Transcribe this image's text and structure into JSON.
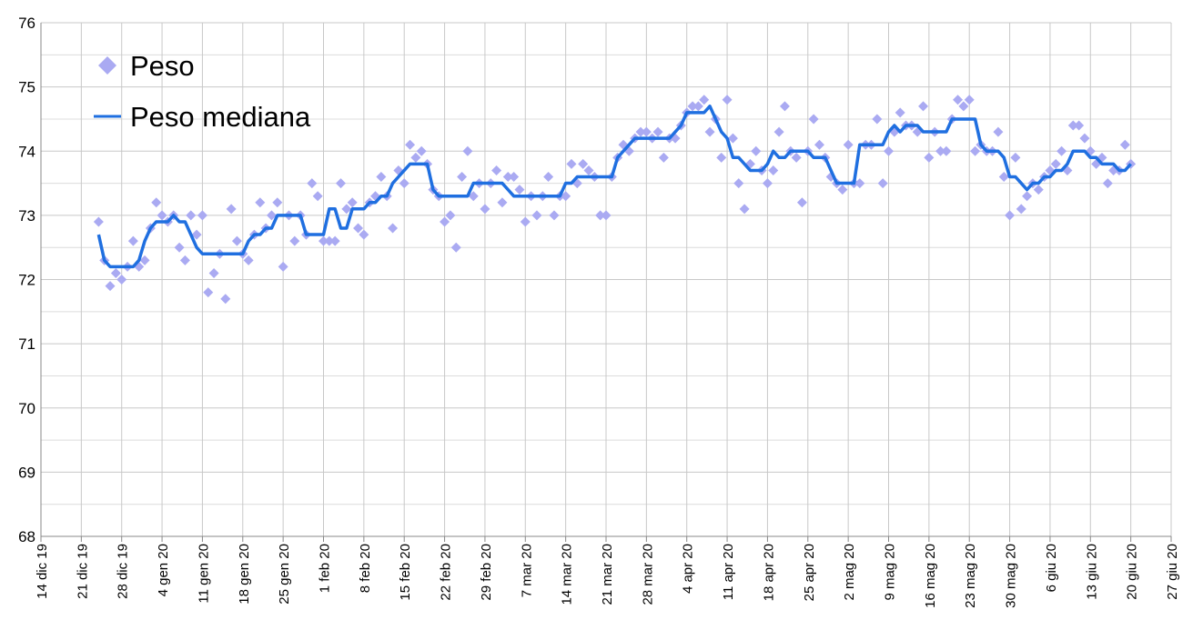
{
  "chart_data": {
    "type": "scatter",
    "x": [
      "2019-12-24",
      "2019-12-25",
      "2019-12-26",
      "2019-12-27",
      "2019-12-28",
      "2019-12-29",
      "2019-12-30",
      "2019-12-31",
      "2020-01-01",
      "2020-01-02",
      "2020-01-03",
      "2020-01-04",
      "2020-01-05",
      "2020-01-06",
      "2020-01-07",
      "2020-01-08",
      "2020-01-09",
      "2020-01-10",
      "2020-01-11",
      "2020-01-12",
      "2020-01-13",
      "2020-01-14",
      "2020-01-15",
      "2020-01-16",
      "2020-01-17",
      "2020-01-18",
      "2020-01-19",
      "2020-01-20",
      "2020-01-21",
      "2020-01-22",
      "2020-01-23",
      "2020-01-24",
      "2020-01-25",
      "2020-01-26",
      "2020-01-27",
      "2020-01-28",
      "2020-01-29",
      "2020-01-30",
      "2020-01-31",
      "2020-02-01",
      "2020-02-02",
      "2020-02-03",
      "2020-02-04",
      "2020-02-05",
      "2020-02-06",
      "2020-02-07",
      "2020-02-08",
      "2020-02-09",
      "2020-02-10",
      "2020-02-11",
      "2020-02-12",
      "2020-02-13",
      "2020-02-14",
      "2020-02-15",
      "2020-02-16",
      "2020-02-17",
      "2020-02-18",
      "2020-02-19",
      "2020-02-20",
      "2020-02-21",
      "2020-02-22",
      "2020-02-23",
      "2020-02-24",
      "2020-02-25",
      "2020-02-26",
      "2020-02-27",
      "2020-02-28",
      "2020-02-29",
      "2020-03-01",
      "2020-03-02",
      "2020-03-03",
      "2020-03-04",
      "2020-03-05",
      "2020-03-06",
      "2020-03-07",
      "2020-03-08",
      "2020-03-09",
      "2020-03-10",
      "2020-03-11",
      "2020-03-12",
      "2020-03-13",
      "2020-03-14",
      "2020-03-15",
      "2020-03-16",
      "2020-03-17",
      "2020-03-18",
      "2020-03-19",
      "2020-03-20",
      "2020-03-21",
      "2020-03-22",
      "2020-03-23",
      "2020-03-24",
      "2020-03-25",
      "2020-03-26",
      "2020-03-27",
      "2020-03-28",
      "2020-03-29",
      "2020-03-30",
      "2020-03-31",
      "2020-04-01",
      "2020-04-02",
      "2020-04-03",
      "2020-04-04",
      "2020-04-05",
      "2020-04-06",
      "2020-04-07",
      "2020-04-08",
      "2020-04-09",
      "2020-04-10",
      "2020-04-11",
      "2020-04-12",
      "2020-04-13",
      "2020-04-14",
      "2020-04-15",
      "2020-04-16",
      "2020-04-17",
      "2020-04-18",
      "2020-04-19",
      "2020-04-20",
      "2020-04-21",
      "2020-04-22",
      "2020-04-23",
      "2020-04-24",
      "2020-04-25",
      "2020-04-26",
      "2020-04-27",
      "2020-04-28",
      "2020-04-29",
      "2020-04-30",
      "2020-05-01",
      "2020-05-02",
      "2020-05-03",
      "2020-05-04",
      "2020-05-05",
      "2020-05-06",
      "2020-05-07",
      "2020-05-08",
      "2020-05-09",
      "2020-05-10",
      "2020-05-11",
      "2020-05-12",
      "2020-05-13",
      "2020-05-14",
      "2020-05-15",
      "2020-05-16",
      "2020-05-17",
      "2020-05-18",
      "2020-05-19",
      "2020-05-20",
      "2020-05-21",
      "2020-05-22",
      "2020-05-23",
      "2020-05-24",
      "2020-05-25",
      "2020-05-26",
      "2020-05-27",
      "2020-05-28",
      "2020-05-29",
      "2020-05-30",
      "2020-05-31",
      "2020-06-01",
      "2020-06-02",
      "2020-06-03",
      "2020-06-04",
      "2020-06-05",
      "2020-06-06",
      "2020-06-07",
      "2020-06-08",
      "2020-06-09",
      "2020-06-10",
      "2020-06-11",
      "2020-06-12",
      "2020-06-13",
      "2020-06-14",
      "2020-06-15",
      "2020-06-16",
      "2020-06-17",
      "2020-06-18",
      "2020-06-19",
      "2020-06-20"
    ],
    "series": [
      {
        "name": "Peso",
        "kind": "scatter",
        "color": "#aaaaf2",
        "values": [
          72.9,
          72.3,
          71.9,
          72.1,
          72.0,
          72.2,
          72.6,
          72.2,
          72.3,
          72.8,
          73.2,
          73.0,
          72.9,
          73.0,
          72.5,
          72.3,
          73.0,
          72.7,
          73.0,
          71.8,
          72.1,
          72.4,
          71.7,
          73.1,
          72.6,
          72.4,
          72.3,
          72.7,
          73.2,
          72.8,
          73.0,
          73.2,
          72.2,
          73.0,
          72.6,
          73.0,
          72.7,
          73.5,
          73.3,
          72.6,
          72.6,
          72.6,
          73.5,
          73.1,
          73.2,
          72.8,
          72.7,
          73.2,
          73.3,
          73.6,
          73.3,
          72.8,
          73.7,
          73.5,
          74.1,
          73.9,
          74.0,
          73.8,
          73.4,
          73.3,
          72.9,
          73.0,
          72.5,
          73.6,
          74.0,
          73.3,
          73.5,
          73.1,
          73.5,
          73.7,
          73.2,
          73.6,
          73.6,
          73.4,
          72.9,
          73.3,
          73.0,
          73.3,
          73.6,
          73.0,
          73.3,
          73.3,
          73.8,
          73.5,
          73.8,
          73.7,
          73.6,
          73.0,
          73.0,
          73.6,
          73.9,
          74.1,
          74.0,
          74.2,
          74.3,
          74.3,
          74.2,
          74.3,
          73.9,
          74.2,
          74.2,
          74.4,
          74.6,
          74.7,
          74.7,
          74.8,
          74.3,
          74.5,
          73.9,
          74.8,
          74.2,
          73.5,
          73.1,
          73.8,
          74.0,
          73.7,
          73.5,
          73.7,
          74.3,
          74.7,
          74.0,
          73.9,
          73.2,
          74.0,
          74.5,
          74.1,
          73.9,
          73.6,
          73.5,
          73.4,
          74.1,
          73.5,
          73.5,
          74.1,
          74.1,
          74.5,
          73.5,
          74.0,
          74.3,
          74.6,
          74.4,
          74.4,
          74.3,
          74.7,
          73.9,
          74.3,
          74.0,
          74.0,
          74.5,
          74.8,
          74.7,
          74.8,
          74.0,
          74.1,
          74.0,
          74.0,
          74.3,
          73.6,
          73.0,
          73.9,
          73.1,
          73.3,
          73.5,
          73.4,
          73.6,
          73.7,
          73.8,
          74.0,
          73.7,
          74.4,
          74.4,
          74.2,
          74.0,
          73.8,
          73.9,
          73.5,
          73.7,
          73.7,
          74.1,
          73.8
        ]
      },
      {
        "name": "Peso mediana",
        "kind": "line",
        "color": "#1f6fe0",
        "values": [
          72.7,
          72.3,
          72.2,
          72.2,
          72.2,
          72.2,
          72.2,
          72.3,
          72.6,
          72.8,
          72.9,
          72.9,
          72.9,
          73.0,
          72.9,
          72.9,
          72.7,
          72.5,
          72.4,
          72.4,
          72.4,
          72.4,
          72.4,
          72.4,
          72.4,
          72.4,
          72.6,
          72.7,
          72.7,
          72.8,
          72.8,
          73.0,
          73.0,
          73.0,
          73.0,
          73.0,
          72.7,
          72.7,
          72.7,
          72.7,
          73.1,
          73.1,
          72.8,
          72.8,
          73.1,
          73.1,
          73.1,
          73.2,
          73.2,
          73.3,
          73.3,
          73.5,
          73.6,
          73.7,
          73.8,
          73.8,
          73.8,
          73.8,
          73.4,
          73.3,
          73.3,
          73.3,
          73.3,
          73.3,
          73.3,
          73.5,
          73.5,
          73.5,
          73.5,
          73.5,
          73.5,
          73.4,
          73.3,
          73.3,
          73.3,
          73.3,
          73.3,
          73.3,
          73.3,
          73.3,
          73.3,
          73.5,
          73.5,
          73.6,
          73.6,
          73.6,
          73.6,
          73.6,
          73.6,
          73.6,
          73.9,
          74.0,
          74.1,
          74.2,
          74.2,
          74.2,
          74.2,
          74.2,
          74.2,
          74.2,
          74.3,
          74.4,
          74.6,
          74.6,
          74.6,
          74.6,
          74.7,
          74.5,
          74.3,
          74.2,
          73.9,
          73.9,
          73.8,
          73.7,
          73.7,
          73.7,
          73.8,
          74.0,
          73.9,
          73.9,
          74.0,
          74.0,
          74.0,
          74.0,
          73.9,
          73.9,
          73.9,
          73.7,
          73.5,
          73.5,
          73.5,
          73.5,
          74.1,
          74.1,
          74.1,
          74.1,
          74.1,
          74.3,
          74.4,
          74.3,
          74.4,
          74.4,
          74.4,
          74.3,
          74.3,
          74.3,
          74.3,
          74.3,
          74.5,
          74.5,
          74.5,
          74.5,
          74.5,
          74.1,
          74.0,
          74.0,
          74.0,
          73.9,
          73.6,
          73.6,
          73.5,
          73.4,
          73.5,
          73.5,
          73.6,
          73.6,
          73.7,
          73.7,
          73.8,
          74.0,
          74.0,
          74.0,
          73.9,
          73.9,
          73.8,
          73.8,
          73.8,
          73.7,
          73.7,
          73.8
        ]
      }
    ],
    "xlim": [
      "2019-12-14",
      "2020-06-27"
    ],
    "xticks": [
      {
        "value": "2019-12-14",
        "label": "14 dic 19"
      },
      {
        "value": "2019-12-21",
        "label": "21 dic 19"
      },
      {
        "value": "2019-12-28",
        "label": "28 dic 19"
      },
      {
        "value": "2020-01-04",
        "label": "4 gen 20"
      },
      {
        "value": "2020-01-11",
        "label": "11 gen 20"
      },
      {
        "value": "2020-01-18",
        "label": "18 gen 20"
      },
      {
        "value": "2020-01-25",
        "label": "25 gen 20"
      },
      {
        "value": "2020-02-01",
        "label": "1 feb 20"
      },
      {
        "value": "2020-02-08",
        "label": "8 feb 20"
      },
      {
        "value": "2020-02-15",
        "label": "15 feb 20"
      },
      {
        "value": "2020-02-22",
        "label": "22 feb 20"
      },
      {
        "value": "2020-02-29",
        "label": "29 feb 20"
      },
      {
        "value": "2020-03-07",
        "label": "7 mar 20"
      },
      {
        "value": "2020-03-14",
        "label": "14 mar 20"
      },
      {
        "value": "2020-03-21",
        "label": "21 mar 20"
      },
      {
        "value": "2020-03-28",
        "label": "28 mar 20"
      },
      {
        "value": "2020-04-04",
        "label": "4 apr 20"
      },
      {
        "value": "2020-04-11",
        "label": "11 apr 20"
      },
      {
        "value": "2020-04-18",
        "label": "18 apr 20"
      },
      {
        "value": "2020-04-25",
        "label": "25 apr 20"
      },
      {
        "value": "2020-05-02",
        "label": "2 mag 20"
      },
      {
        "value": "2020-05-09",
        "label": "9 mag 20"
      },
      {
        "value": "2020-05-16",
        "label": "16 mag 20"
      },
      {
        "value": "2020-05-23",
        "label": "23 mag 20"
      },
      {
        "value": "2020-05-30",
        "label": "30 mag 20"
      },
      {
        "value": "2020-06-06",
        "label": "6 giu 20"
      },
      {
        "value": "2020-06-13",
        "label": "13 giu 20"
      },
      {
        "value": "2020-06-20",
        "label": "20 giu 20"
      },
      {
        "value": "2020-06-27",
        "label": "27 giu 20"
      }
    ],
    "ylim": [
      68,
      76
    ],
    "yticks": [
      68,
      69,
      70,
      71,
      72,
      73,
      74,
      75,
      76
    ],
    "yminorticks": [
      68.5,
      69.5,
      70.5,
      71.5,
      72.5,
      73.5,
      74.5,
      75.5
    ],
    "grid": true,
    "legend": "top-left"
  }
}
